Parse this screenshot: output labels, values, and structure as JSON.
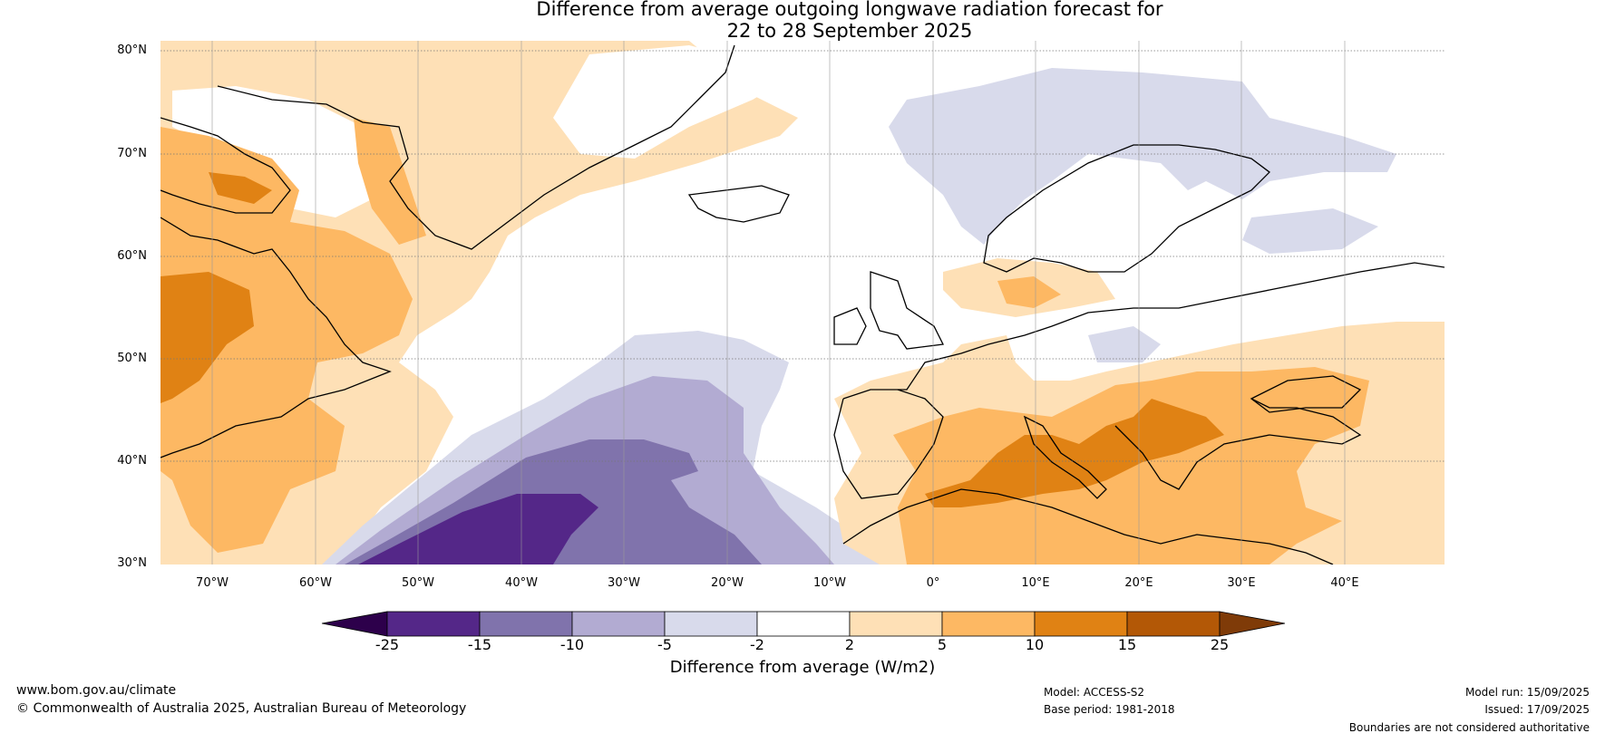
{
  "title": {
    "line1": "Difference from average outgoing longwave radiation forecast for",
    "line2": "22 to 28 September 2025"
  },
  "axes": {
    "lat_labels": [
      "80°N",
      "70°N",
      "60°N",
      "50°N",
      "40°N",
      "30°N"
    ],
    "lon_labels": [
      "70°W",
      "60°W",
      "50°W",
      "40°W",
      "30°W",
      "20°W",
      "10°W",
      "0°",
      "10°E",
      "20°E",
      "30°E",
      "40°E"
    ]
  },
  "colorbar": {
    "title": "Difference from average (W/m2)",
    "tick_labels": [
      "-25",
      "-15",
      "-10",
      "-5",
      "-2",
      "2",
      "5",
      "10",
      "15",
      "25"
    ],
    "colors": {
      "below_min": "#2d004b",
      "bins": [
        "#542788",
        "#8073ac",
        "#b2abd2",
        "#d8daeb",
        "#ffffff",
        "#fee0b6",
        "#fdb863",
        "#e08214",
        "#b35806"
      ],
      "above_max": "#7f3b08"
    }
  },
  "footer": {
    "website": "www.bom.gov.au/climate",
    "copyright": "© Commonwealth of Australia 2025, Australian Bureau of Meteorology",
    "model": "Model: ACCESS-S2",
    "base_period": "Base period: 1981-2018",
    "model_run": "Model run: 15/09/2025",
    "issued": "Issued: 17/09/2025",
    "disclaimer": "Boundaries are not considered authoritative"
  }
}
